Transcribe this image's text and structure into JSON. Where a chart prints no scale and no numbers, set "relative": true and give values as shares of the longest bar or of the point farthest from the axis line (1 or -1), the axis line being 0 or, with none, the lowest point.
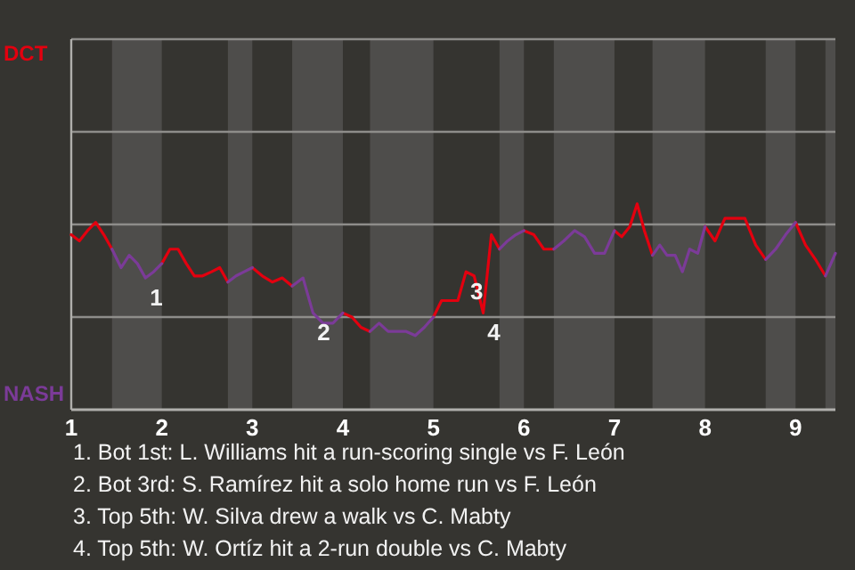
{
  "chart_data": {
    "type": "line",
    "relative": true,
    "marker": "none",
    "line_style": "solid",
    "xlim": [
      1,
      9.44
    ],
    "xticks": [
      1,
      2,
      3,
      4,
      5,
      6,
      7,
      8,
      9
    ],
    "x": [
      1.0,
      1.09,
      1.18,
      1.27,
      1.36,
      1.45,
      1.55,
      1.64,
      1.73,
      1.82,
      1.91,
      2.0,
      2.09,
      2.18,
      2.27,
      2.36,
      2.45,
      2.55,
      2.64,
      2.73,
      2.82,
      2.91,
      3.0,
      3.11,
      3.22,
      3.33,
      3.44,
      3.56,
      3.67,
      3.78,
      3.89,
      4.0,
      4.1,
      4.2,
      4.3,
      4.4,
      4.5,
      4.6,
      4.7,
      4.8,
      4.9,
      5.0,
      5.09,
      5.18,
      5.27,
      5.36,
      5.45,
      5.55,
      5.64,
      5.73,
      5.82,
      5.91,
      6.0,
      6.11,
      6.22,
      6.33,
      6.44,
      6.56,
      6.67,
      6.78,
      6.89,
      7.0,
      7.08,
      7.17,
      7.25,
      7.33,
      7.42,
      7.5,
      7.58,
      7.67,
      7.75,
      7.83,
      7.92,
      8.0,
      8.11,
      8.22,
      8.33,
      8.44,
      8.56,
      8.67,
      8.78,
      8.89,
      9.0,
      9.11,
      9.22,
      9.33,
      9.44
    ],
    "series": [
      {
        "name": "DCT",
        "color": "#e3000f",
        "values": [
          0.85,
          0.82,
          0.87,
          0.91,
          0.85,
          0.78,
          null,
          null,
          null,
          null,
          null,
          0.71,
          0.78,
          0.78,
          0.71,
          0.65,
          0.65,
          0.67,
          0.69,
          0.62,
          null,
          null,
          0.69,
          0.65,
          0.62,
          0.64,
          0.6,
          null,
          null,
          null,
          null,
          0.47,
          0.45,
          0.4,
          0.38,
          null,
          null,
          null,
          null,
          null,
          null,
          0.45,
          0.53,
          0.53,
          0.53,
          0.67,
          0.65,
          0.47,
          0.85,
          0.78,
          null,
          null,
          0.87,
          0.85,
          0.78,
          0.78,
          null,
          null,
          null,
          null,
          null,
          0.87,
          0.84,
          0.89,
          1,
          0.87,
          0.75,
          null,
          null,
          null,
          null,
          null,
          null,
          0.89,
          0.82,
          0.93,
          0.93,
          0.93,
          0.8,
          0.73,
          null,
          null,
          0.91,
          0.8,
          0.73,
          0.65,
          null
        ]
      },
      {
        "name": "NASH",
        "color": "#7b3b98",
        "values": [
          null,
          null,
          null,
          null,
          null,
          0.78,
          0.69,
          0.75,
          0.71,
          0.64,
          0.67,
          0.71,
          null,
          null,
          null,
          null,
          null,
          null,
          null,
          0.62,
          0.65,
          0.67,
          0.69,
          null,
          null,
          null,
          0.6,
          0.64,
          0.47,
          0.42,
          0.42,
          0.47,
          null,
          null,
          0.38,
          0.42,
          0.38,
          0.38,
          0.38,
          0.36,
          0.4,
          0.45,
          null,
          null,
          null,
          null,
          null,
          null,
          null,
          0.78,
          0.82,
          0.85,
          0.87,
          null,
          null,
          0.78,
          0.82,
          0.87,
          0.84,
          0.76,
          0.76,
          0.87,
          null,
          null,
          null,
          null,
          0.75,
          0.8,
          0.75,
          0.75,
          0.67,
          0.78,
          0.76,
          0.89,
          null,
          null,
          null,
          null,
          null,
          0.73,
          0.78,
          0.85,
          0.91,
          null,
          null,
          0.65,
          0.76
        ]
      }
    ],
    "ref_lines": [
      {
        "axis": "y",
        "value": 0.45,
        "color": "#8e8d8a"
      },
      {
        "axis": "y",
        "value": 0.9,
        "color": "#8e8d8a"
      },
      {
        "axis": "y",
        "value": 1.35,
        "color": "#8e8d8a"
      }
    ],
    "bands": [
      {
        "axis": "x",
        "from": 1.45,
        "to": 2,
        "color": "#4e4d4b"
      },
      {
        "axis": "x",
        "from": 2.73,
        "to": 3,
        "color": "#4e4d4b"
      },
      {
        "axis": "x",
        "from": 3.44,
        "to": 4,
        "color": "#4e4d4b"
      },
      {
        "axis": "x",
        "from": 4.3,
        "to": 5,
        "color": "#4e4d4b"
      },
      {
        "axis": "x",
        "from": 5.73,
        "to": 6,
        "color": "#4e4d4b"
      },
      {
        "axis": "x",
        "from": 6.33,
        "to": 7,
        "color": "#4e4d4b"
      },
      {
        "axis": "x",
        "from": 7.42,
        "to": 8,
        "color": "#4e4d4b"
      },
      {
        "axis": "x",
        "from": 8.67,
        "to": 9,
        "color": "#4e4d4b"
      },
      {
        "axis": "x",
        "from": 9.33,
        "to": 9.44,
        "color": "#4e4d4b"
      }
    ],
    "annotations": [
      {
        "text": "1",
        "x": 1.82,
        "y": 0.64
      },
      {
        "text": "2",
        "x": 3.67,
        "y": 0.47
      },
      {
        "text": "3",
        "x": 5.36,
        "y": 0.67
      },
      {
        "text": "4",
        "x": 5.55,
        "y": 0.47
      },
      "1. Bot 1st: L. Williams hit a run-scoring single vs F. León",
      "2. Bot 3rd: S. Ramírez hit a solo home run vs F. León",
      "3. Top 5th: W. Silva drew a walk vs C. Mabty",
      "4. Top 5th: W. Ortíz hit a 2-run double vs C. Mabty"
    ]
  }
}
